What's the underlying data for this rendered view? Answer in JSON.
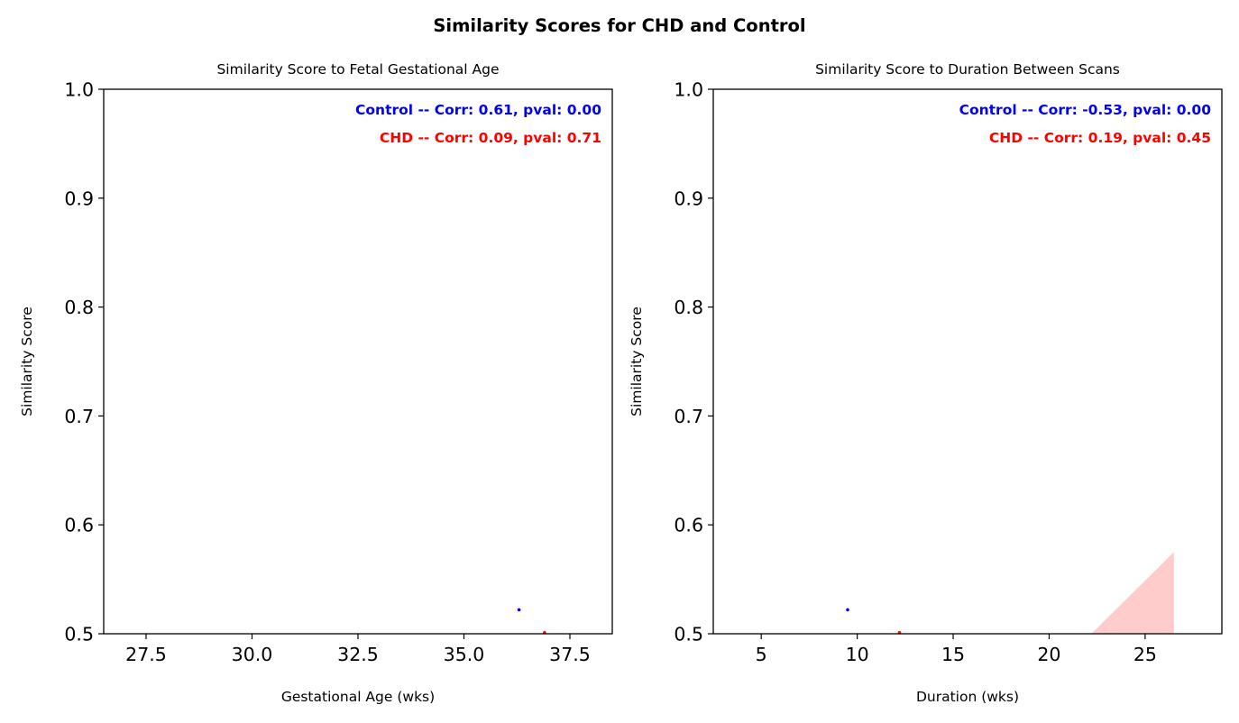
{
  "figure": {
    "suptitle": "Similarity Scores for CHD and Control"
  },
  "colors": {
    "control": "#0000ff",
    "chd": "#ff0000",
    "chd_band": "#ffcccc"
  },
  "chart_data": [
    {
      "type": "scatter",
      "title": "Similarity Score to Fetal Gestational Age",
      "xlabel": "Gestational Age (wks)",
      "ylabel": "Similarity Score",
      "xlim": [
        26.5,
        38.5
      ],
      "ylim": [
        0.5,
        1.0
      ],
      "xticks": [
        27.5,
        30.0,
        32.5,
        35.0,
        37.5
      ],
      "xtick_labels": [
        "27.5",
        "30.0",
        "32.5",
        "35.0",
        "37.5"
      ],
      "yticks": [
        0.5,
        0.6,
        0.7,
        0.8,
        0.9,
        1.0
      ],
      "ytick_labels": [
        "0.5",
        "0.6",
        "0.7",
        "0.8",
        "0.9",
        "1.0"
      ],
      "grid": false,
      "series": [
        {
          "key": "control",
          "points": [
            [
              36.3,
              0.522
            ]
          ]
        },
        {
          "key": "chd",
          "points": [
            [
              36.9,
              0.501
            ]
          ]
        }
      ],
      "bands": [],
      "annotations": [
        {
          "key": "control",
          "text": "Control -- Corr: 0.61, pval: 0.00"
        },
        {
          "key": "chd",
          "text": "CHD -- Corr: 0.09, pval: 0.71"
        }
      ]
    },
    {
      "type": "scatter",
      "title": "Similarity Score to Duration Between Scans",
      "xlabel": "Duration (wks)",
      "ylabel": "Similarity Score",
      "xlim": [
        2.5,
        29.0
      ],
      "ylim": [
        0.5,
        1.0
      ],
      "xticks": [
        5,
        10,
        15,
        20,
        25
      ],
      "xtick_labels": [
        "5",
        "10",
        "15",
        "20",
        "25"
      ],
      "yticks": [
        0.5,
        0.6,
        0.7,
        0.8,
        0.9,
        1.0
      ],
      "ytick_labels": [
        "0.5",
        "0.6",
        "0.7",
        "0.8",
        "0.9",
        "1.0"
      ],
      "grid": false,
      "series": [
        {
          "key": "control",
          "points": [
            [
              9.5,
              0.522
            ]
          ]
        },
        {
          "key": "chd",
          "points": [
            [
              12.2,
              0.501
            ]
          ]
        }
      ],
      "bands": [
        {
          "key": "chd_band",
          "polygon": [
            [
              22.2,
              0.5
            ],
            [
              26.5,
              0.5
            ],
            [
              26.5,
              0.575
            ]
          ]
        }
      ],
      "annotations": [
        {
          "key": "control",
          "text": "Control -- Corr: -0.53, pval: 0.00"
        },
        {
          "key": "chd",
          "text": "CHD -- Corr: 0.19, pval: 0.45"
        }
      ]
    }
  ]
}
